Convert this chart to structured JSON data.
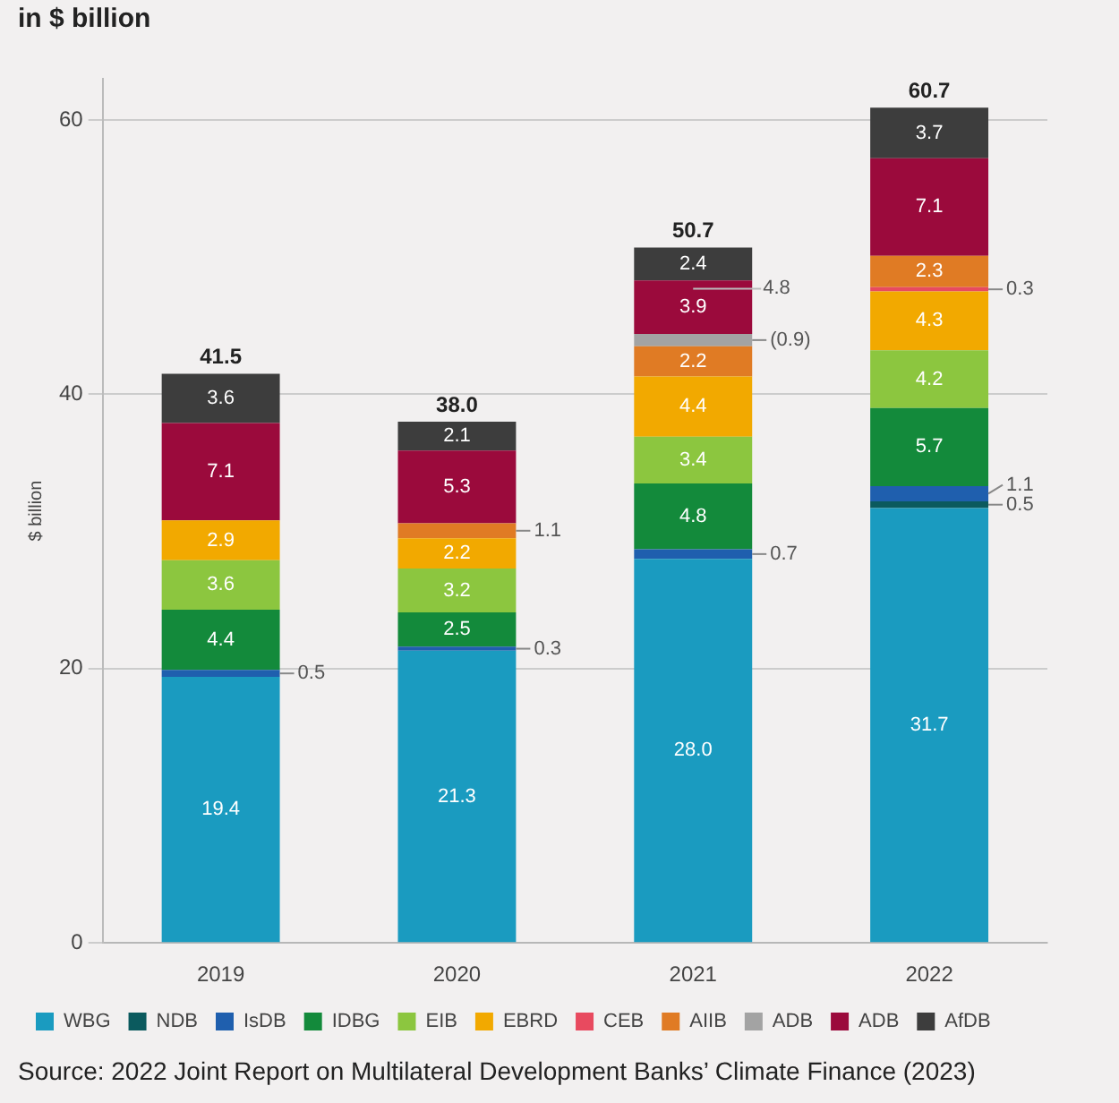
{
  "chart_data": {
    "type": "bar",
    "stacked": true,
    "title": "in $ billion",
    "ylabel": "$ billion",
    "categories": [
      "2019",
      "2020",
      "2021",
      "2022"
    ],
    "ylim": [
      0,
      63
    ],
    "yticks": [
      0,
      20,
      40,
      60
    ],
    "grid": "y",
    "legend": "bottom left",
    "data_labels": true,
    "series": [
      {
        "name": "WBG",
        "color": "#1a9bc0",
        "values": [
          19.4,
          21.3,
          28.0,
          31.7
        ],
        "value_labels": [
          "19.4",
          "21.3",
          "28.0",
          "31.7"
        ]
      },
      {
        "name": "NDB",
        "color": "#0b5a5e",
        "values": [
          null,
          null,
          null,
          0.5
        ]
      },
      {
        "name": "IsDB",
        "color": "#1f5fae",
        "values": [
          0.5,
          0.3,
          0.7,
          1.1
        ]
      },
      {
        "name": "IDBG",
        "color": "#138a3b",
        "values": [
          4.4,
          2.5,
          4.8,
          5.7
        ]
      },
      {
        "name": "EIB",
        "color": "#8cc63f",
        "values": [
          3.6,
          3.2,
          3.4,
          4.2
        ]
      },
      {
        "name": "EBRD",
        "color": "#f2a900",
        "values": [
          2.9,
          2.2,
          4.4,
          4.3
        ]
      },
      {
        "name": "CEB",
        "color": "#e84a5f",
        "values": [
          null,
          null,
          null,
          0.3
        ]
      },
      {
        "name": "AIIB",
        "color": "#e07b24",
        "values": [
          null,
          1.1,
          2.2,
          2.3
        ]
      },
      {
        "name": "ADB",
        "color": "#a3a3a3",
        "values": [
          null,
          null,
          0.9,
          null
        ],
        "value_labels": [
          null,
          null,
          "(0.9)",
          null
        ]
      },
      {
        "name": "ADB",
        "color": "#9b0a3c",
        "values": [
          7.1,
          5.3,
          3.9,
          7.1
        ]
      },
      {
        "name": "AfDB",
        "color": "#3d3d3d",
        "values": [
          3.6,
          2.1,
          2.4,
          3.7
        ]
      }
    ],
    "totals": [
      "41.5",
      "38.0",
      "50.7",
      "60.7"
    ],
    "annotations": [
      {
        "text": "4.8",
        "x": "2021",
        "y": 47.7
      },
      "Source: 2022 Joint Report on Multilateral Development Banks’ Climate Finance (2023)"
    ]
  }
}
